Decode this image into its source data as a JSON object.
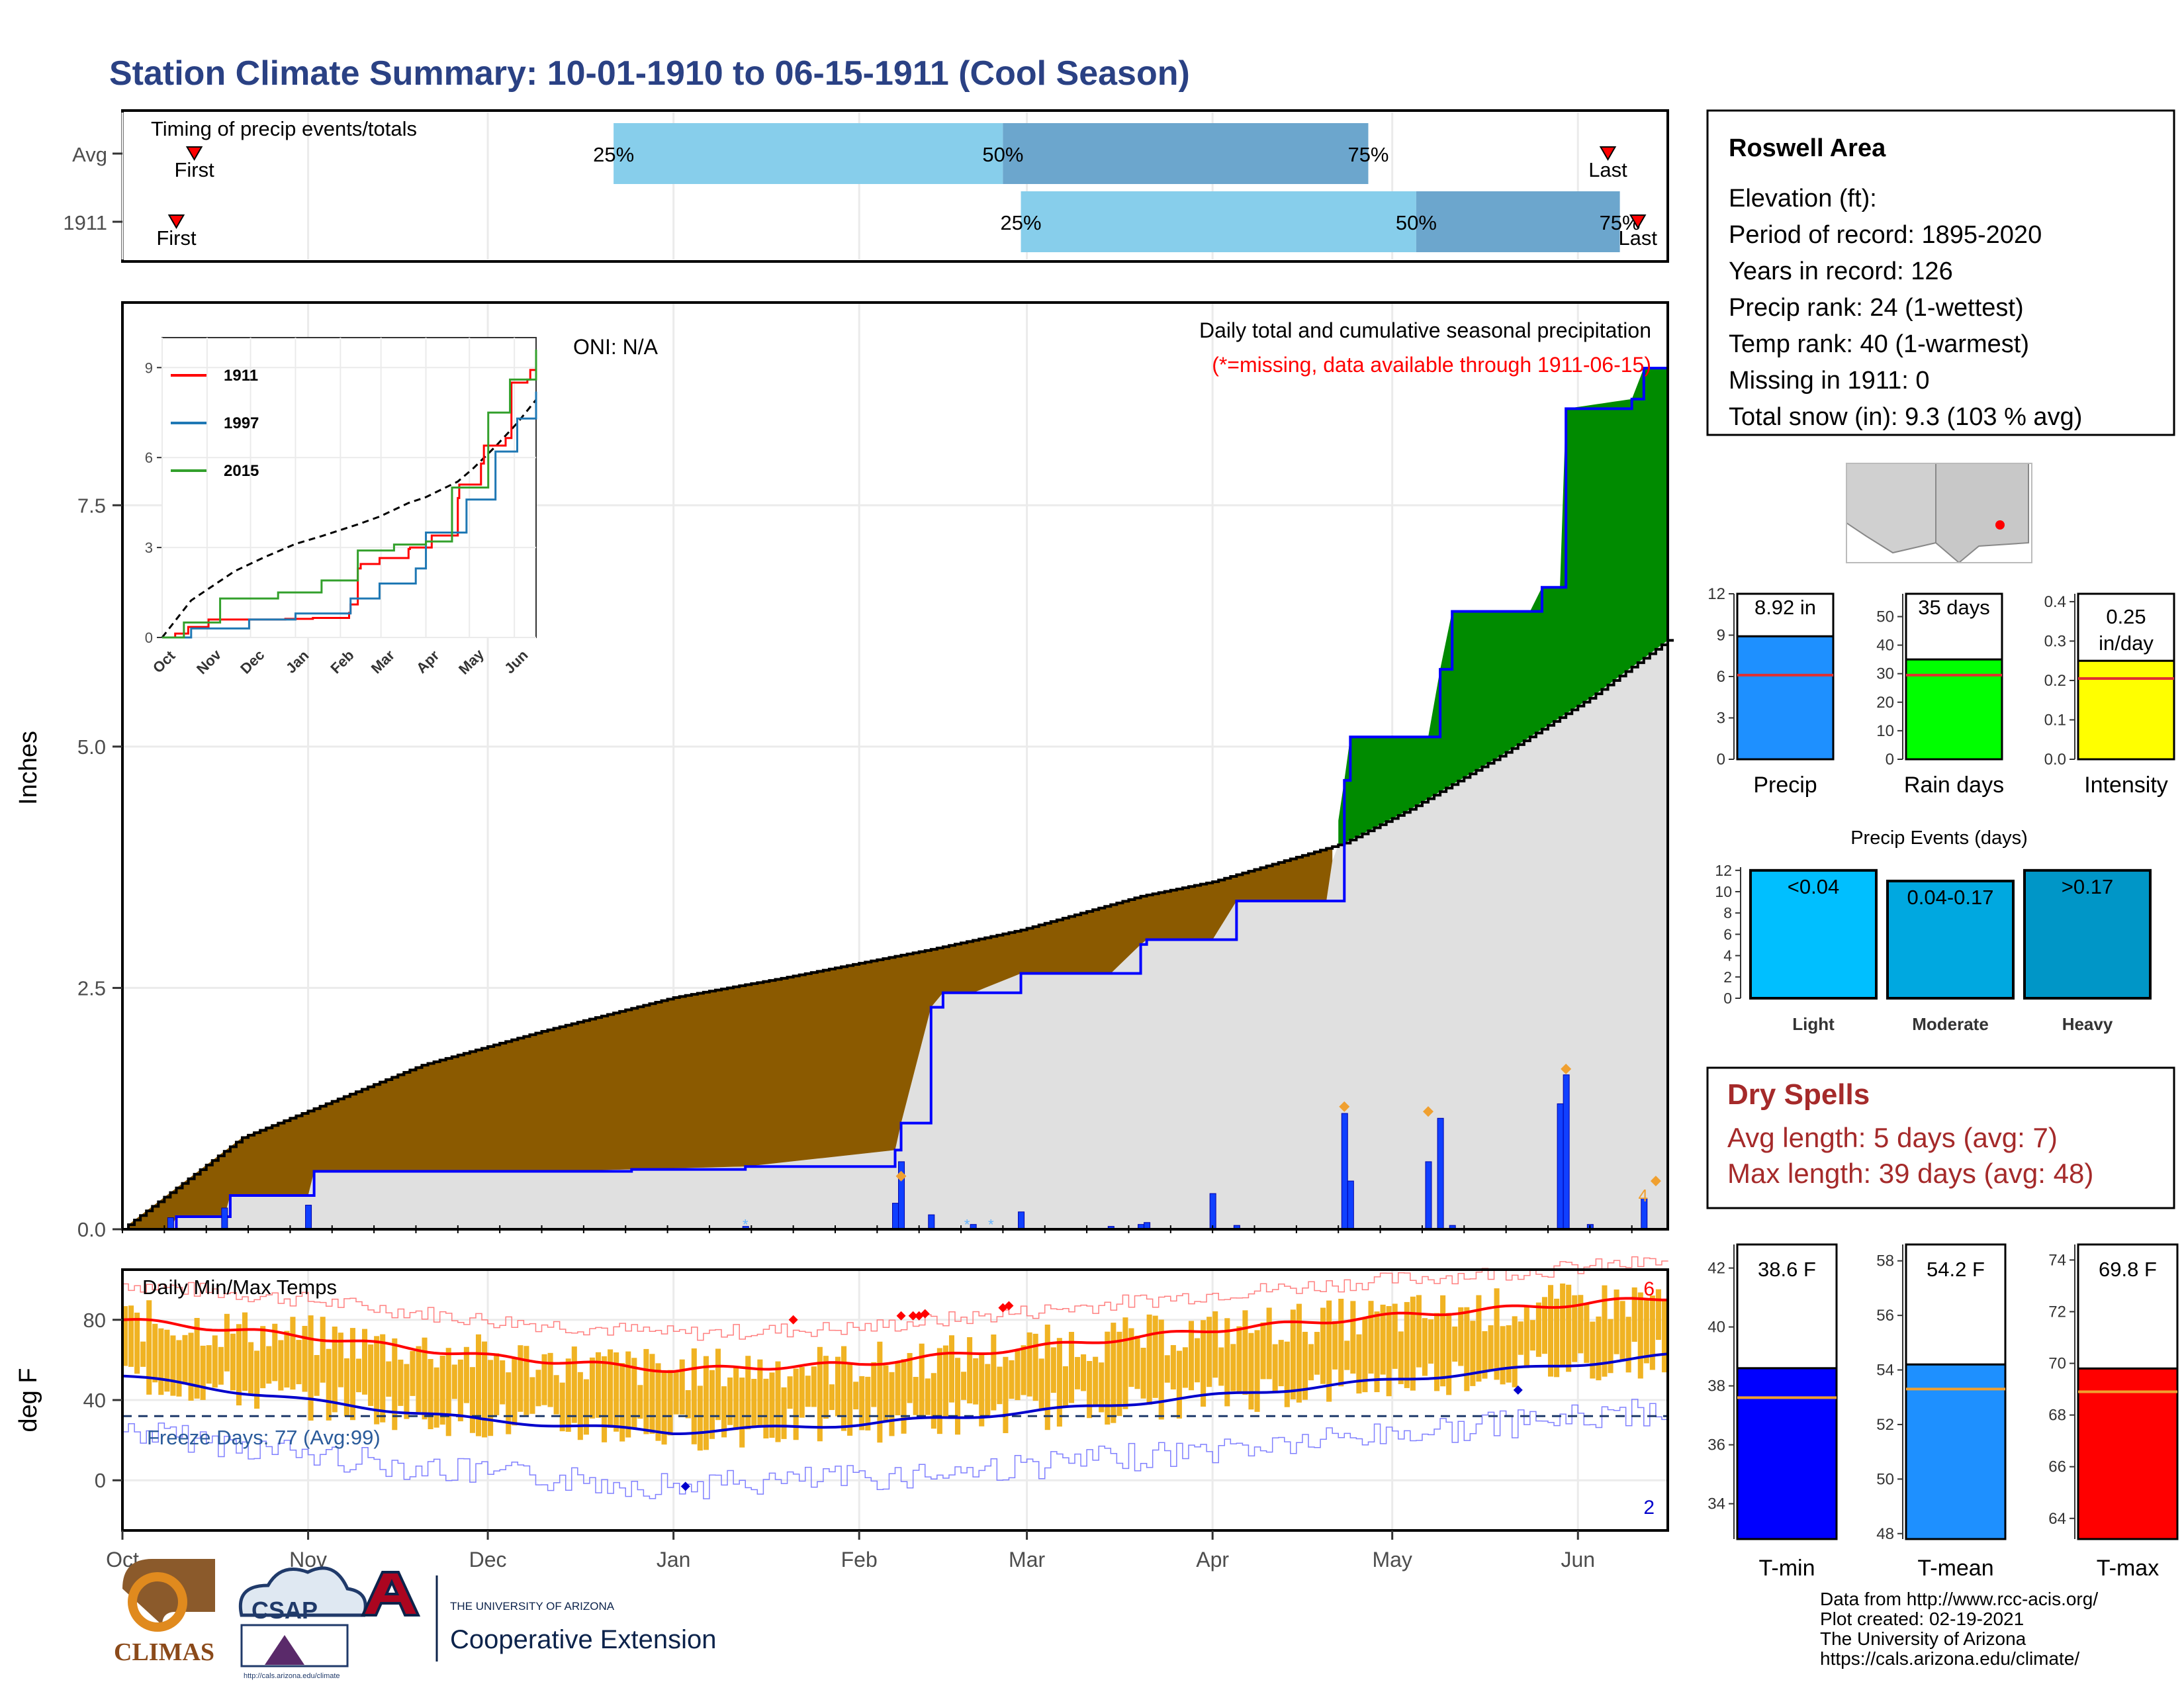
{
  "title": "Station Climate Summary: 10-01-1910 to 06-15-1911 (Cool Season)",
  "colors": {
    "title": "#2a4184",
    "light_blue": "#87ceeb",
    "mid_blue": "#6ca6cd",
    "brown": "#8b5a00",
    "green": "#008b00",
    "navy_line": "#0000ff",
    "gray_fill": "#e0e0e0",
    "temp_bar": "#f0b323",
    "red": "#ff0000",
    "dry_spell": "#a52a2a"
  },
  "timing": {
    "title": "Timing of precip events/totals",
    "rows": [
      {
        "label": "Avg",
        "first_day": 12,
        "last_day": 248,
        "p25": 82,
        "p50": 147,
        "p75": 208
      },
      {
        "label": "1911",
        "first_day": 9,
        "last_day": 253,
        "p25": 150,
        "p50": 216,
        "p75": 250
      }
    ],
    "first_label": "First",
    "last_label": "Last",
    "pct_labels": [
      "25%",
      "50%",
      "75%"
    ]
  },
  "precip_panel": {
    "ylabel": "Inches",
    "yticks": [
      0.0,
      2.5,
      5.0,
      7.5
    ],
    "ytick_labels": [
      "0.0",
      "2.5",
      "5.0",
      "7.5"
    ],
    "ylim": [
      0,
      9.6
    ],
    "title": "Daily total and cumulative seasonal precipitation",
    "subtitle": "(*=missing, data available through 1911-06-15)",
    "oni": "ONI: N/A",
    "corner_count": "4",
    "inset": {
      "yticks": [
        0,
        3,
        6,
        9
      ],
      "ytick_labels": [
        "0",
        "3",
        "6",
        "9"
      ],
      "xtick_labels": [
        "Oct",
        "Nov",
        "Dec",
        "Jan",
        "Feb",
        "Mar",
        "Apr",
        "May",
        "Jun"
      ],
      "legend": [
        {
          "name": "1911",
          "color": "#ff0000"
        },
        {
          "name": "1997",
          "color": "#1f78b4"
        },
        {
          "name": "2015",
          "color": "#33a02c"
        }
      ]
    }
  },
  "temp_panel": {
    "ylabel": "deg F",
    "title": "Daily Min/Max Temps",
    "yticks": [
      0,
      40,
      80
    ],
    "ytick_labels": [
      "0",
      "40",
      "80"
    ],
    "ylim": [
      -25,
      105
    ],
    "freeze_label": "Freeze Days: 77 (Avg:99)",
    "freeze_line": 32,
    "record_high_count": "6",
    "record_low_count": "2"
  },
  "x_axis": {
    "months": [
      "Oct",
      "Nov",
      "Dec",
      "Jan",
      "Feb",
      "Mar",
      "Apr",
      "May",
      "Jun"
    ],
    "month_start_days": [
      0,
      31,
      61,
      92,
      123,
      151,
      182,
      212,
      243
    ],
    "total_days": 258
  },
  "station_info": {
    "name": "Roswell Area",
    "lines": [
      "Elevation (ft):",
      "Period of record: 1895-2020",
      "Years in record: 126",
      "Precip rank: 24 (1-wettest)",
      "Temp rank: 40 (1-warmest)",
      "Missing in 1911: 0",
      "Total snow (in): 9.3 (103 % avg)"
    ]
  },
  "summary_bars": {
    "precip": {
      "label": "Precip",
      "value": 8.92,
      "avg": 6.1,
      "text": "8.92 in",
      "color": "#1e90ff",
      "yticks": [
        0,
        3,
        6,
        9,
        12
      ],
      "ymax": 12
    },
    "rain_days": {
      "label": "Rain days",
      "value": 35,
      "avg": 29.5,
      "text": "35 days",
      "color": "#00ff00",
      "yticks": [
        0,
        10,
        20,
        30,
        40,
        50
      ],
      "ymax": 58
    },
    "intensity": {
      "label": "Intensity",
      "value": 0.25,
      "avg": 0.205,
      "text": "0.25 in/day",
      "color": "#ffff00",
      "yticks": [
        0.0,
        0.1,
        0.2,
        0.3,
        0.4
      ],
      "ytick_labels": [
        "0.0",
        "0.1",
        "0.2",
        "0.3",
        "0.4"
      ],
      "ymax": 0.42
    }
  },
  "precip_events": {
    "title": "Precip Events (days)",
    "yticks": [
      0,
      2,
      4,
      6,
      8,
      10,
      12
    ],
    "ymax": 12.3,
    "bars": [
      {
        "category": "Light",
        "label": "<0.04",
        "value": 12,
        "color": "#00bfff"
      },
      {
        "category": "Moderate",
        "label": "0.04-0.17",
        "value": 11,
        "color": "#00a8e0"
      },
      {
        "category": "Heavy",
        "label": ">0.17",
        "value": 12,
        "color": "#0096c7"
      }
    ]
  },
  "dry_spells": {
    "title": "Dry Spells",
    "avg_line": "Avg length: 5 days (avg: 7)",
    "max_line": "Max length: 39 days (avg: 48)"
  },
  "temp_bars": {
    "tmin": {
      "label": "T-min",
      "value": 38.6,
      "avg": 37.6,
      "text": "38.6 F",
      "color": "#0000ff",
      "yticks": [
        34,
        36,
        38,
        40,
        42
      ],
      "ymin": 32.8,
      "ymax": 42.8
    },
    "tmean": {
      "label": "T-mean",
      "value": 54.2,
      "avg": 53.3,
      "text": "54.2 F",
      "color": "#1e90ff",
      "yticks": [
        48,
        50,
        52,
        54,
        56,
        58
      ],
      "ymin": 47.8,
      "ymax": 58.6
    },
    "tmax": {
      "label": "T-max",
      "value": 69.8,
      "avg": 68.9,
      "text": "69.8 F",
      "color": "#ff0000",
      "yticks": [
        64,
        66,
        68,
        70,
        72,
        74
      ],
      "ymin": 63.2,
      "ymax": 74.6
    }
  },
  "chart_data": [
    {
      "type": "area",
      "title": "Daily total and cumulative seasonal precipitation",
      "ylabel": "Inches",
      "ylim": [
        0,
        9.6
      ],
      "series": [
        {
          "name": "1911",
          "day": [
            0,
            8,
            9,
            17,
            18,
            31,
            32,
            37,
            52,
            70,
            85,
            104,
            129,
            130,
            135,
            137,
            142,
            150,
            165,
            170,
            171,
            182,
            186,
            201,
            204,
            205,
            218,
            220,
            222,
            235,
            237,
            240,
            241,
            252,
            254,
            258
          ],
          "cumulative": [
            0,
            0,
            0.13,
            0.13,
            0.35,
            0.35,
            0.6,
            0.6,
            0.6,
            0.6,
            0.62,
            0.65,
            0.82,
            1.1,
            2.3,
            2.45,
            2.45,
            2.65,
            2.65,
            2.95,
            3.0,
            3.0,
            3.4,
            3.4,
            4.65,
            5.1,
            5.1,
            5.8,
            6.4,
            6.4,
            6.65,
            6.65,
            8.5,
            8.6,
            8.92,
            8.92
          ]
        },
        {
          "name": "average",
          "day": [
            0,
            20,
            50,
            70,
            92,
            110,
            135,
            150,
            170,
            182,
            204,
            215,
            230,
            245,
            258
          ],
          "cumulative": [
            0,
            0.95,
            1.7,
            2.05,
            2.4,
            2.6,
            2.9,
            3.1,
            3.45,
            3.6,
            4.0,
            4.35,
            4.9,
            5.5,
            6.1
          ]
        }
      ]
    },
    {
      "type": "bar",
      "title": "Daily Min/Max Temps",
      "ylabel": "deg F",
      "ylim": [
        -25,
        105
      ],
      "series": [
        {
          "name": "avg max",
          "day": [
            0,
            30,
            60,
            92,
            123,
            151,
            182,
            212,
            243,
            258
          ],
          "values": [
            80,
            72,
            62,
            55,
            58,
            66,
            75,
            82,
            88,
            91
          ]
        },
        {
          "name": "avg min",
          "day": [
            0,
            30,
            60,
            92,
            123,
            151,
            182,
            212,
            243,
            258
          ],
          "values": [
            52,
            40,
            30,
            24,
            28,
            34,
            42,
            50,
            58,
            62
          ]
        }
      ]
    }
  ]
}
